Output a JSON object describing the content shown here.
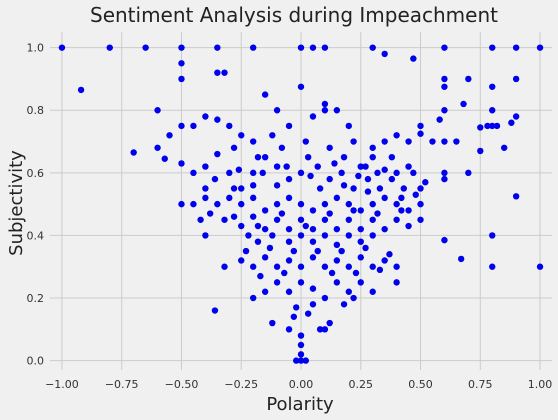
{
  "chart_data": {
    "type": "scatter",
    "title": "Sentiment Analysis during Impeachment",
    "xlabel": "Polarity",
    "ylabel": "Subjectivity",
    "xlim": [
      -1.05,
      1.05
    ],
    "ylim": [
      -0.03,
      1.05
    ],
    "xticks": [
      -1.0,
      -0.75,
      -0.5,
      -0.25,
      0.0,
      0.25,
      0.5,
      0.75,
      1.0
    ],
    "xtick_labels": [
      "−1.00",
      "−0.75",
      "−0.50",
      "−0.25",
      "0.00",
      "0.25",
      "0.50",
      "0.75",
      "1.00"
    ],
    "yticks": [
      0.0,
      0.2,
      0.4,
      0.6,
      0.8,
      1.0
    ],
    "ytick_labels": [
      "0.0",
      "0.2",
      "0.4",
      "0.6",
      "0.8",
      "1.0"
    ],
    "grid": true,
    "color": "#0000ee",
    "points": [
      [
        -1.0,
        1.0
      ],
      [
        -0.8,
        1.0
      ],
      [
        -0.65,
        1.0
      ],
      [
        -0.5,
        1.0
      ],
      [
        -0.35,
        1.0
      ],
      [
        -0.2,
        1.0
      ],
      [
        0.0,
        1.0
      ],
      [
        0.05,
        1.0
      ],
      [
        0.1,
        1.0
      ],
      [
        0.3,
        1.0
      ],
      [
        0.6,
        1.0
      ],
      [
        0.8,
        1.0
      ],
      [
        0.9,
        1.0
      ],
      [
        1.0,
        1.0
      ],
      [
        -0.5,
        0.95
      ],
      [
        -0.5,
        0.9
      ],
      [
        -0.92,
        0.865
      ],
      [
        -0.35,
        0.92
      ],
      [
        -0.32,
        0.92
      ],
      [
        0.0,
        0.875
      ],
      [
        0.35,
        0.98
      ],
      [
        0.47,
        0.965
      ],
      [
        0.6,
        0.9
      ],
      [
        0.6,
        0.875
      ],
      [
        0.7,
        0.9
      ],
      [
        0.8,
        0.875
      ],
      [
        0.9,
        0.9
      ],
      [
        0.8,
        0.8
      ],
      [
        0.8,
        0.75
      ],
      [
        0.82,
        0.75
      ],
      [
        0.78,
        0.75
      ],
      [
        0.88,
        0.76
      ],
      [
        0.9,
        0.78
      ],
      [
        0.75,
        0.745
      ],
      [
        0.68,
        0.82
      ],
      [
        0.6,
        0.8
      ],
      [
        0.58,
        0.77
      ],
      [
        0.5,
        0.75
      ],
      [
        0.5,
        0.725
      ],
      [
        0.55,
        0.7
      ],
      [
        0.6,
        0.7
      ],
      [
        0.65,
        0.7
      ],
      [
        0.85,
        0.68
      ],
      [
        0.75,
        0.67
      ],
      [
        0.7,
        0.6
      ],
      [
        0.6,
        0.6
      ],
      [
        0.6,
        0.58
      ],
      [
        0.4,
        0.6
      ],
      [
        0.45,
        0.62
      ],
      [
        0.38,
        0.65
      ],
      [
        0.3,
        0.65
      ],
      [
        0.25,
        0.62
      ],
      [
        0.22,
        0.7
      ],
      [
        0.2,
        0.75
      ],
      [
        0.15,
        0.8
      ],
      [
        0.1,
        0.82
      ],
      [
        0.1,
        0.8
      ],
      [
        0.05,
        0.78
      ],
      [
        -0.05,
        0.75
      ],
      [
        -0.1,
        0.8
      ],
      [
        -0.15,
        0.85
      ],
      [
        -0.12,
        0.72
      ],
      [
        -0.2,
        0.7
      ],
      [
        -0.25,
        0.72
      ],
      [
        -0.3,
        0.75
      ],
      [
        -0.35,
        0.77
      ],
      [
        -0.4,
        0.78
      ],
      [
        -0.45,
        0.75
      ],
      [
        -0.5,
        0.75
      ],
      [
        -0.6,
        0.8
      ],
      [
        -0.55,
        0.72
      ],
      [
        -0.7,
        0.665
      ],
      [
        -0.6,
        0.68
      ],
      [
        -0.57,
        0.645
      ],
      [
        -0.5,
        0.63
      ],
      [
        -0.45,
        0.6
      ],
      [
        -0.4,
        0.62
      ],
      [
        -0.35,
        0.66
      ],
      [
        -0.3,
        0.6
      ],
      [
        -0.25,
        0.55
      ],
      [
        -0.2,
        0.6
      ],
      [
        -0.15,
        0.65
      ],
      [
        -0.1,
        0.62
      ],
      [
        -0.05,
        0.58
      ],
      [
        0.0,
        0.6
      ],
      [
        0.03,
        0.65
      ],
      [
        0.07,
        0.62
      ],
      [
        0.12,
        0.58
      ],
      [
        0.17,
        0.6
      ],
      [
        0.22,
        0.55
      ],
      [
        0.28,
        0.58
      ],
      [
        0.33,
        0.55
      ],
      [
        0.38,
        0.58
      ],
      [
        0.43,
        0.55
      ],
      [
        0.5,
        0.55
      ],
      [
        0.5,
        0.5
      ],
      [
        0.45,
        0.48
      ],
      [
        0.4,
        0.5
      ],
      [
        0.35,
        0.52
      ],
      [
        0.3,
        0.5
      ],
      [
        0.25,
        0.48
      ],
      [
        0.2,
        0.5
      ],
      [
        0.15,
        0.52
      ],
      [
        0.1,
        0.5
      ],
      [
        0.05,
        0.48
      ],
      [
        0.0,
        0.5
      ],
      [
        -0.05,
        0.52
      ],
      [
        -0.1,
        0.5
      ],
      [
        -0.15,
        0.48
      ],
      [
        -0.2,
        0.52
      ],
      [
        -0.25,
        0.5
      ],
      [
        -0.3,
        0.52
      ],
      [
        -0.35,
        0.5
      ],
      [
        -0.4,
        0.52
      ],
      [
        -0.45,
        0.5
      ],
      [
        -0.5,
        0.5
      ],
      [
        -0.4,
        0.4
      ],
      [
        -0.42,
        0.45
      ],
      [
        -0.32,
        0.45
      ],
      [
        -0.25,
        0.43
      ],
      [
        -0.2,
        0.46
      ],
      [
        -0.15,
        0.42
      ],
      [
        -0.1,
        0.45
      ],
      [
        -0.05,
        0.42
      ],
      [
        0.0,
        0.45
      ],
      [
        0.05,
        0.42
      ],
      [
        0.1,
        0.45
      ],
      [
        0.15,
        0.42
      ],
      [
        0.2,
        0.45
      ],
      [
        0.25,
        0.42
      ],
      [
        0.3,
        0.45
      ],
      [
        0.35,
        0.42
      ],
      [
        0.4,
        0.45
      ],
      [
        0.45,
        0.43
      ],
      [
        0.5,
        0.45
      ],
      [
        0.3,
        0.4
      ],
      [
        0.25,
        0.38
      ],
      [
        0.2,
        0.4
      ],
      [
        0.15,
        0.37
      ],
      [
        0.1,
        0.4
      ],
      [
        0.05,
        0.38
      ],
      [
        0.0,
        0.4
      ],
      [
        -0.05,
        0.38
      ],
      [
        -0.12,
        0.4
      ],
      [
        -0.18,
        0.38
      ],
      [
        -0.22,
        0.4
      ],
      [
        0.6,
        0.385
      ],
      [
        0.8,
        0.4
      ],
      [
        0.8,
        0.3
      ],
      [
        0.67,
        0.325
      ],
      [
        1.0,
        0.3
      ],
      [
        0.9,
        0.525
      ],
      [
        0.4,
        0.3
      ],
      [
        0.35,
        0.32
      ],
      [
        0.3,
        0.3
      ],
      [
        0.25,
        0.33
      ],
      [
        0.2,
        0.3
      ],
      [
        0.15,
        0.32
      ],
      [
        0.1,
        0.3
      ],
      [
        0.05,
        0.33
      ],
      [
        0.0,
        0.3
      ],
      [
        -0.05,
        0.32
      ],
      [
        -0.1,
        0.3
      ],
      [
        -0.15,
        0.33
      ],
      [
        -0.2,
        0.3
      ],
      [
        -0.25,
        0.32
      ],
      [
        -0.32,
        0.3
      ],
      [
        0.4,
        0.25
      ],
      [
        0.3,
        0.22
      ],
      [
        0.25,
        0.25
      ],
      [
        0.2,
        0.22
      ],
      [
        0.15,
        0.25
      ],
      [
        0.1,
        0.2
      ],
      [
        0.05,
        0.23
      ],
      [
        0.0,
        0.25
      ],
      [
        -0.05,
        0.22
      ],
      [
        -0.1,
        0.25
      ],
      [
        -0.15,
        0.22
      ],
      [
        -0.2,
        0.2
      ],
      [
        0.22,
        0.2
      ],
      [
        0.18,
        0.18
      ],
      [
        0.05,
        0.18
      ],
      [
        0.03,
        0.15
      ],
      [
        -0.02,
        0.17
      ],
      [
        -0.36,
        0.16
      ],
      [
        0.12,
        0.12
      ],
      [
        0.08,
        0.1
      ],
      [
        0.1,
        0.1
      ],
      [
        -0.03,
        0.14
      ],
      [
        -0.05,
        0.1
      ],
      [
        -0.12,
        0.12
      ],
      [
        0.0,
        0.05
      ],
      [
        0.0,
        0.02
      ],
      [
        0.0,
        0.0
      ],
      [
        0.02,
        0.0
      ],
      [
        -0.02,
        0.0
      ],
      [
        0.0,
        0.08
      ],
      [
        0.35,
        0.7
      ],
      [
        0.3,
        0.68
      ],
      [
        0.4,
        0.72
      ],
      [
        0.45,
        0.7
      ],
      [
        0.18,
        0.65
      ],
      [
        0.12,
        0.68
      ],
      [
        0.02,
        0.7
      ],
      [
        -0.08,
        0.68
      ],
      [
        -0.18,
        0.65
      ],
      [
        -0.28,
        0.68
      ],
      [
        0.27,
        0.62
      ],
      [
        0.32,
        0.6
      ],
      [
        0.47,
        0.6
      ],
      [
        0.52,
        0.57
      ],
      [
        -0.1,
        0.56
      ],
      [
        -0.2,
        0.56
      ],
      [
        -0.28,
        0.55
      ],
      [
        -0.4,
        0.55
      ],
      [
        0.08,
        0.55
      ],
      [
        0.18,
        0.56
      ],
      [
        0.28,
        0.54
      ],
      [
        0.42,
        0.52
      ],
      [
        0.48,
        0.53
      ],
      [
        0.12,
        0.47
      ],
      [
        0.22,
        0.48
      ],
      [
        0.32,
        0.47
      ],
      [
        0.42,
        0.48
      ],
      [
        -0.08,
        0.47
      ],
      [
        -0.18,
        0.43
      ],
      [
        -0.28,
        0.46
      ],
      [
        -0.38,
        0.47
      ],
      [
        0.02,
        0.43
      ],
      [
        0.17,
        0.35
      ],
      [
        0.27,
        0.36
      ],
      [
        0.37,
        0.34
      ],
      [
        0.07,
        0.35
      ],
      [
        -0.03,
        0.35
      ],
      [
        -0.13,
        0.36
      ],
      [
        -0.23,
        0.35
      ],
      [
        0.13,
        0.28
      ],
      [
        0.23,
        0.28
      ],
      [
        0.33,
        0.29
      ],
      [
        -0.07,
        0.28
      ],
      [
        -0.17,
        0.27
      ],
      [
        0.35,
        0.61
      ],
      [
        0.24,
        0.59
      ],
      [
        0.14,
        0.63
      ],
      [
        0.04,
        0.59
      ],
      [
        -0.06,
        0.62
      ],
      [
        -0.16,
        0.6
      ],
      [
        -0.26,
        0.61
      ],
      [
        -0.36,
        0.58
      ]
    ]
  }
}
